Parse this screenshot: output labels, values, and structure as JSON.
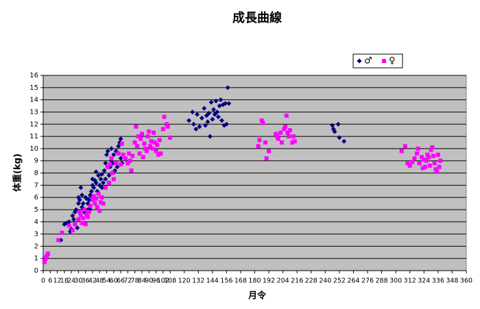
{
  "chart_data": {
    "type": "scatter",
    "title": "成長曲線",
    "x_label": "月令",
    "y_label": "体重(kg)",
    "xlim": [
      0,
      360
    ],
    "ylim": [
      0,
      16
    ],
    "xticks": [
      0,
      6,
      12,
      18,
      24,
      30,
      36,
      42,
      48,
      54,
      60,
      66,
      72,
      78,
      84,
      90,
      96,
      102,
      108,
      120,
      132,
      144,
      156,
      168,
      180,
      192,
      204,
      216,
      228,
      240,
      252,
      264,
      276,
      288,
      300,
      312,
      324,
      336,
      348,
      360
    ],
    "yticks": [
      0,
      1,
      2,
      3,
      4,
      5,
      6,
      7,
      8,
      9,
      10,
      11,
      12,
      13,
      14,
      15,
      16
    ],
    "grid": true,
    "legend": "top-right",
    "background": "#c0c0c0",
    "series": [
      {
        "name": "♂",
        "color": "#000080",
        "marker": "diamond",
        "x": [
          2,
          3,
          4,
          15,
          18,
          20,
          22,
          23,
          24,
          25,
          26,
          27,
          28,
          29,
          30,
          30,
          31,
          32,
          33,
          33,
          34,
          35,
          36,
          37,
          38,
          38,
          39,
          40,
          40,
          41,
          42,
          42,
          43,
          44,
          45,
          45,
          46,
          47,
          48,
          49,
          50,
          50,
          51,
          52,
          53,
          53,
          54,
          55,
          55,
          56,
          57,
          58,
          58,
          59,
          60,
          61,
          62,
          63,
          64,
          65,
          66,
          66,
          67,
          124,
          127,
          128,
          130,
          131,
          133,
          135,
          137,
          138,
          139,
          140,
          141,
          142,
          143,
          144,
          145,
          146,
          147,
          148,
          149,
          150,
          151,
          152,
          153,
          154,
          155,
          156,
          157,
          158,
          246,
          247,
          248,
          251,
          252,
          256
        ],
        "values": [
          1.1,
          1.2,
          1.3,
          2.5,
          3.8,
          3.9,
          4.0,
          3.2,
          3.4,
          4.5,
          4.2,
          4.8,
          5.0,
          3.5,
          5.5,
          6.0,
          5.8,
          6.8,
          6.2,
          5.2,
          5.5,
          4.8,
          6.0,
          5.9,
          5.0,
          5.5,
          5.8,
          6.2,
          5.0,
          6.5,
          7.0,
          7.5,
          6.8,
          7.4,
          8.1,
          7.2,
          6.5,
          7.8,
          7.0,
          7.5,
          7.9,
          6.8,
          7.2,
          8.2,
          8.8,
          7.5,
          9.5,
          9.8,
          8.5,
          7.8,
          8.5,
          9.0,
          10.0,
          8.8,
          9.5,
          8.2,
          9.8,
          8.5,
          10.2,
          10.5,
          10.8,
          9.2,
          8.8,
          12.3,
          13.0,
          12.0,
          11.6,
          12.8,
          11.8,
          12.5,
          13.3,
          11.9,
          12.7,
          12.2,
          12.9,
          11.0,
          13.8,
          12.4,
          13.2,
          12.8,
          13.9,
          13.0,
          12.6,
          13.5,
          14.0,
          12.3,
          13.6,
          11.9,
          13.7,
          12.0,
          15.0,
          13.7,
          11.9,
          11.6,
          11.4,
          12.0,
          10.9,
          10.6
        ]
      },
      {
        "name": "♀",
        "color": "#ff00ff",
        "marker": "square",
        "x": [
          1,
          2,
          3,
          4,
          13,
          16,
          22,
          25,
          27,
          30,
          31,
          32,
          33,
          34,
          35,
          36,
          37,
          38,
          39,
          40,
          42,
          43,
          44,
          45,
          46,
          47,
          48,
          49,
          50,
          51,
          53,
          55,
          56,
          57,
          58,
          59,
          60,
          62,
          64,
          66,
          67,
          68,
          70,
          72,
          73,
          74,
          75,
          76,
          78,
          79,
          80,
          81,
          82,
          83,
          84,
          85,
          86,
          87,
          88,
          89,
          90,
          91,
          92,
          93,
          94,
          95,
          96,
          97,
          98,
          99,
          100,
          102,
          103,
          105,
          106,
          108,
          183,
          184,
          186,
          187,
          189,
          190,
          192,
          198,
          199,
          200,
          202,
          203,
          205,
          206,
          207,
          208,
          209,
          210,
          212,
          213,
          214,
          305,
          308,
          310,
          312,
          314,
          316,
          318,
          319,
          320,
          322,
          323,
          324,
          325,
          326,
          327,
          328,
          329,
          330,
          331,
          332,
          333,
          334,
          335,
          336,
          337,
          338
        ],
        "values": [
          0.7,
          1.0,
          1.2,
          1.4,
          2.5,
          3.1,
          3.7,
          3.3,
          3.8,
          4.2,
          4.8,
          4.5,
          3.9,
          4.3,
          5.0,
          3.8,
          4.6,
          4.4,
          4.8,
          5.3,
          5.8,
          6.1,
          5.5,
          5.9,
          5.2,
          6.3,
          4.9,
          5.6,
          6.0,
          5.5,
          6.8,
          8.5,
          7.2,
          8.7,
          9.2,
          8.0,
          7.5,
          8.8,
          9.6,
          8.7,
          10.4,
          9.5,
          9.2,
          8.8,
          9.6,
          9.0,
          8.2,
          9.4,
          10.5,
          11.8,
          10.2,
          11.0,
          9.6,
          10.8,
          11.2,
          9.3,
          10.4,
          10.0,
          9.8,
          11.0,
          11.4,
          10.2,
          10.6,
          10.0,
          11.3,
          10.5,
          9.8,
          10.3,
          9.5,
          10.7,
          9.6,
          11.6,
          12.6,
          12.0,
          11.8,
          10.9,
          10.2,
          10.7,
          12.3,
          12.1,
          10.5,
          9.2,
          9.8,
          11.2,
          11.0,
          10.8,
          11.3,
          10.5,
          11.6,
          11.8,
          12.7,
          11.3,
          11.0,
          11.5,
          10.5,
          11.0,
          10.6,
          9.8,
          10.2,
          8.8,
          8.6,
          8.9,
          9.2,
          9.6,
          10.0,
          8.8,
          9.3,
          8.4,
          9.1,
          8.5,
          9.0,
          9.5,
          9.3,
          8.6,
          9.9,
          10.1,
          9.4,
          8.8,
          8.3,
          8.1,
          9.5,
          8.5,
          9.0
        ]
      }
    ]
  }
}
